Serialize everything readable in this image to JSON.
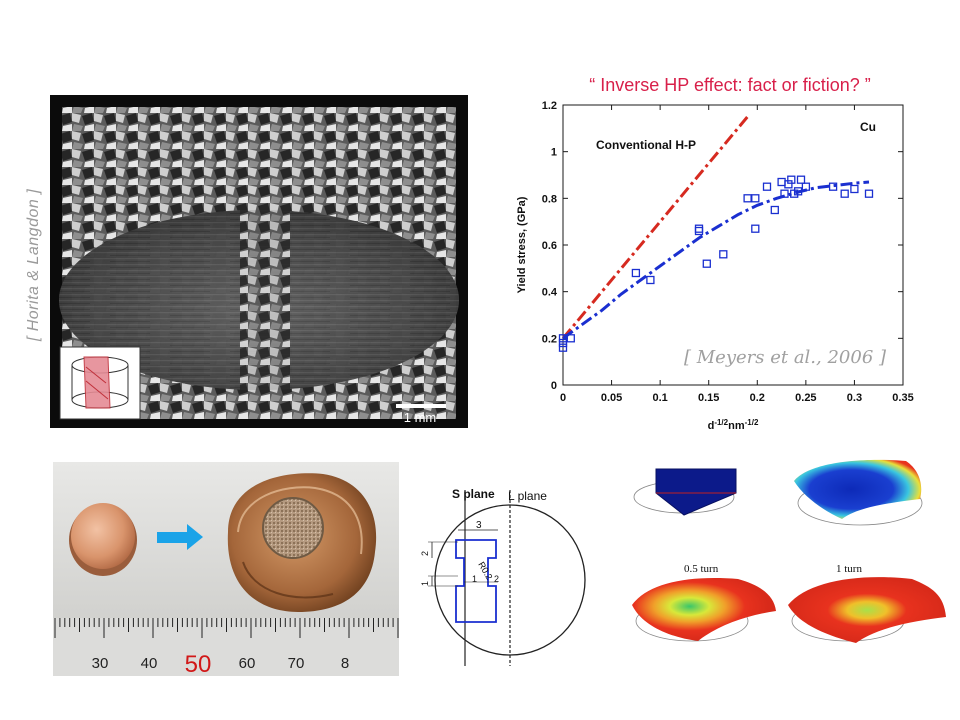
{
  "credits": {
    "micrograph": "[ Horita & Langdon ]",
    "chart": "[ Meyers et al., 2006 ]"
  },
  "micrograph": {
    "scale_bar_label": "1 mm"
  },
  "chart_data": {
    "type": "scatter",
    "title": "“ Inverse HP effect: fact or fiction? ”",
    "xlabel": "d-1/2nm-1/2",
    "xlabel_main": "d",
    "xlabel_sup1": "-1/2",
    "xlabel_mid": "nm",
    "xlabel_sup2": "-1/2",
    "ylabel": "Yield stress, (GPa)",
    "xlim": [
      0,
      0.35
    ],
    "ylim": [
      0,
      1.2
    ],
    "xticks": [
      "0",
      "0.05",
      "0.1",
      "0.15",
      "0.2",
      "0.25",
      "0.3",
      "0.35"
    ],
    "yticks": [
      "0",
      "0.2",
      "0.4",
      "0.6",
      "0.8",
      "1",
      "1.2"
    ],
    "annotations": {
      "conventional": "Conventional H-P",
      "material": "Cu"
    },
    "conventional_line": {
      "color": "#d62a20",
      "x": [
        0,
        0.19
      ],
      "y": [
        0.2,
        1.15
      ]
    },
    "fit_curve": {
      "color": "#1a2fd0",
      "x": [
        0,
        0.02,
        0.04,
        0.06,
        0.08,
        0.1,
        0.12,
        0.14,
        0.16,
        0.18,
        0.2,
        0.22,
        0.24,
        0.26,
        0.28,
        0.3,
        0.315
      ],
      "y": [
        0.2,
        0.26,
        0.32,
        0.39,
        0.45,
        0.51,
        0.57,
        0.63,
        0.68,
        0.73,
        0.77,
        0.8,
        0.825,
        0.845,
        0.855,
        0.865,
        0.87
      ]
    },
    "series": [
      {
        "color": "#1a2fd0",
        "x": [
          0,
          0,
          0,
          0.008,
          0.075,
          0.09,
          0.14,
          0.14,
          0.148,
          0.165,
          0.19,
          0.198,
          0.198,
          0.21,
          0.218,
          0.225,
          0.228,
          0.232,
          0.235,
          0.238,
          0.242,
          0.245,
          0.25,
          0.278,
          0.29,
          0.3,
          0.315
        ],
        "y": [
          0.16,
          0.18,
          0.2,
          0.2,
          0.48,
          0.45,
          0.67,
          0.66,
          0.52,
          0.56,
          0.8,
          0.67,
          0.8,
          0.85,
          0.75,
          0.87,
          0.82,
          0.86,
          0.88,
          0.82,
          0.83,
          0.88,
          0.85,
          0.85,
          0.82,
          0.84,
          0.82
        ]
      }
    ]
  },
  "photo": {
    "ruler_labels": [
      "30",
      "40",
      "50",
      "60",
      "70",
      "8"
    ]
  },
  "diagram": {
    "s_plane": "S plane",
    "l_plane": "L plane",
    "dims": [
      "3",
      "2",
      "1",
      "1",
      "2",
      "R0.2"
    ]
  },
  "fem": {
    "half_turn": "0.5 turn",
    "one_turn": "1 turn"
  }
}
